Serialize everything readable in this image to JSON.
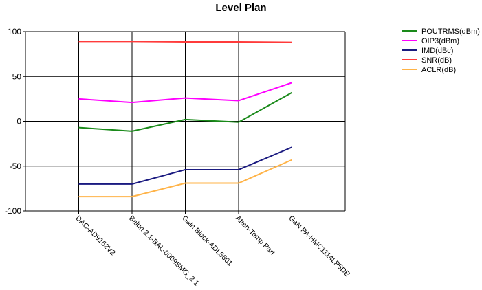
{
  "chart_data": {
    "type": "line",
    "title": "Level Plan",
    "xlabel": "",
    "ylabel": "",
    "categories": [
      "DAC-AD9162V2",
      "Balun 2:1-BAL-0009SMG_2:1",
      "Gain Block-ADL5601",
      "Atten-Temp Part",
      "GaN PA-HMC1114LP5DE"
    ],
    "ylim": [
      -100,
      100
    ],
    "yticks": [
      -100,
      -50,
      0,
      50,
      100
    ],
    "grid": true,
    "legend_position": "top-right",
    "series": [
      {
        "name": "POUTRMS(dBm)",
        "color": "#1a8a1a",
        "values": [
          -7,
          -11,
          2,
          -1,
          32
        ]
      },
      {
        "name": "OIP3(dBm)",
        "color": "#ff00ff",
        "values": [
          25,
          21,
          26,
          23,
          43
        ]
      },
      {
        "name": "IMD(dBc)",
        "color": "#1a1a80",
        "values": [
          -70,
          -70,
          -54,
          -54,
          -29
        ]
      },
      {
        "name": "SNR(dB)",
        "color": "#ff3b3b",
        "values": [
          89,
          89,
          88.5,
          88.5,
          88
        ]
      },
      {
        "name": "ACLR(dB)",
        "color": "#ffb347",
        "values": [
          -84,
          -84,
          -69,
          -69,
          -43
        ]
      }
    ]
  }
}
